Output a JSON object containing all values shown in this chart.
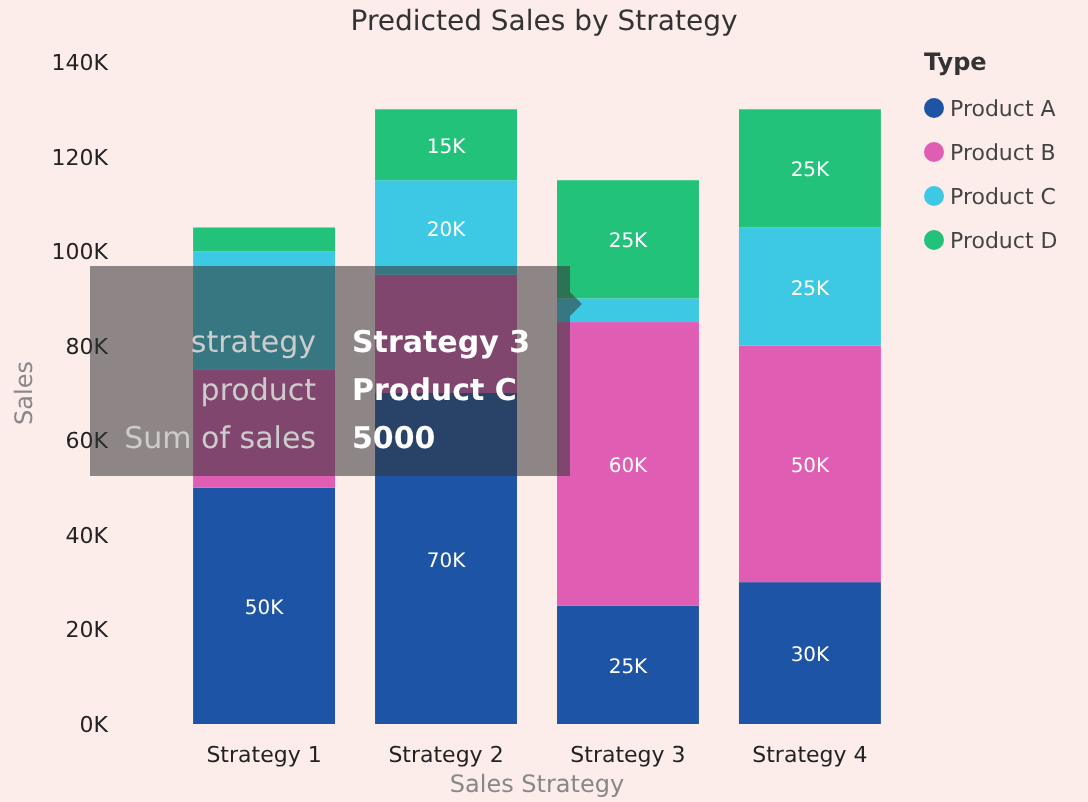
{
  "chart_data": {
    "type": "bar",
    "stacked": true,
    "title": "Predicted Sales by Strategy",
    "xlabel": "Sales Strategy",
    "ylabel": "Sales",
    "legend_title": "Type",
    "legend": "top right",
    "categories": [
      "Strategy 1",
      "Strategy 2",
      "Strategy 3",
      "Strategy 4"
    ],
    "ylim": [
      0,
      140000
    ],
    "yticks": [
      {
        "value": 0,
        "label": "0K"
      },
      {
        "value": 20000,
        "label": "20K"
      },
      {
        "value": 40000,
        "label": "40K"
      },
      {
        "value": 60000,
        "label": "60K"
      },
      {
        "value": 80000,
        "label": "80K"
      },
      {
        "value": 100000,
        "label": "100K"
      },
      {
        "value": 120000,
        "label": "120K"
      },
      {
        "value": 140000,
        "label": "140K"
      }
    ],
    "series": [
      {
        "name": "Product A",
        "color": "#1d54a6",
        "values": [
          50000,
          70000,
          25000,
          30000
        ],
        "value_labels": [
          "50K",
          "70K",
          "25K",
          "30K"
        ]
      },
      {
        "name": "Product B",
        "color": "#e05db4",
        "values": [
          25000,
          25000,
          60000,
          50000
        ],
        "value_labels": [
          null,
          null,
          "60K",
          "50K"
        ]
      },
      {
        "name": "Product C",
        "color": "#3dc9e3",
        "values": [
          25000,
          20000,
          5000,
          25000
        ],
        "value_labels": [
          null,
          "20K",
          null,
          "25K"
        ]
      },
      {
        "name": "Product D",
        "color": "#22c27b",
        "values": [
          5000,
          15000,
          25000,
          25000
        ],
        "value_labels": [
          null,
          "15K",
          "25K",
          "25K"
        ]
      }
    ],
    "annotations": [
      "strategy",
      "Strategy 3",
      "product",
      "Product C",
      "Sum of sales",
      "5000"
    ]
  }
}
